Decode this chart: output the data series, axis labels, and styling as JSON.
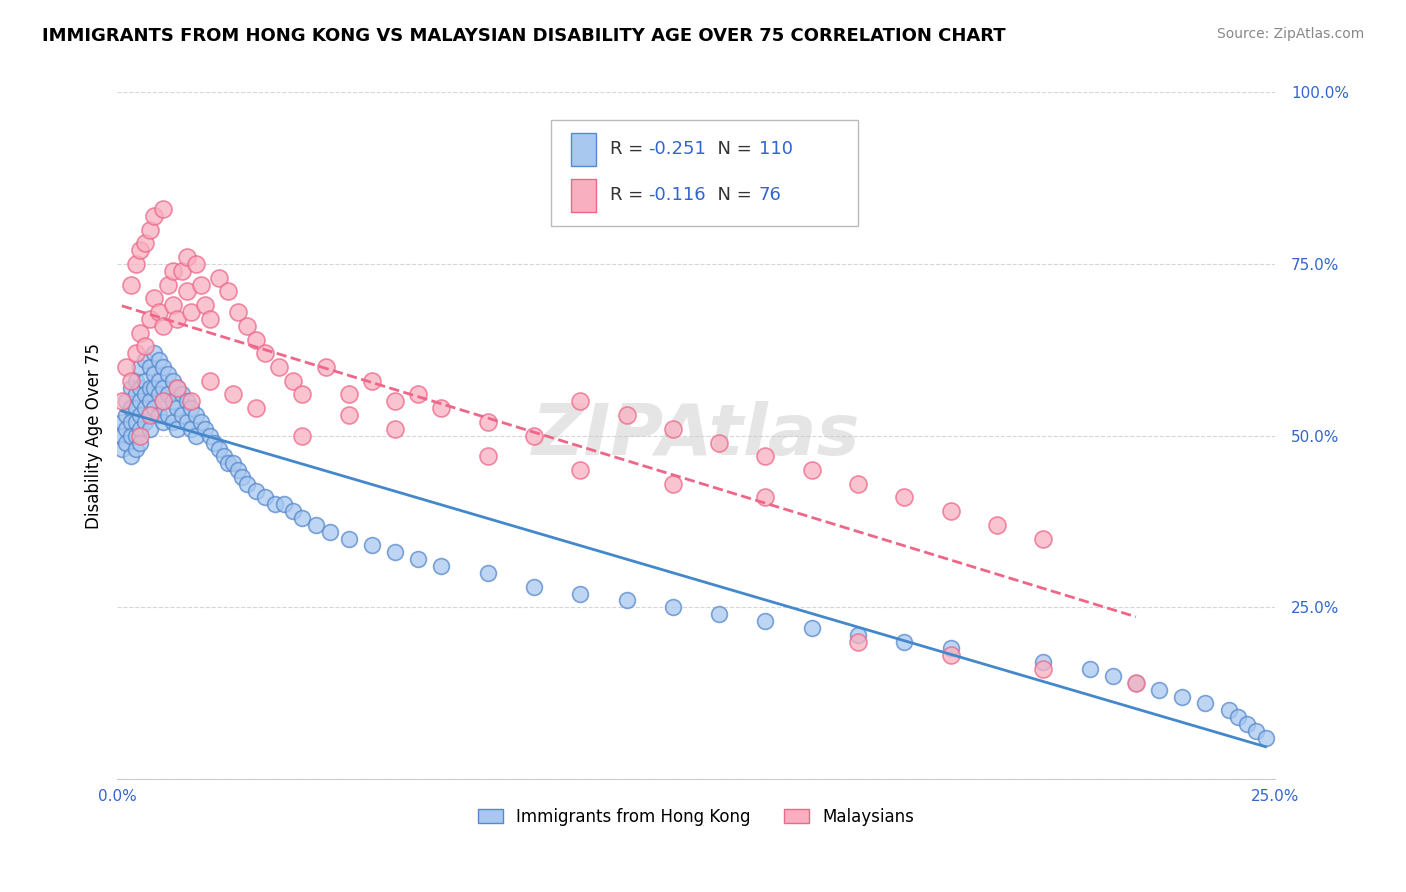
{
  "title": "IMMIGRANTS FROM HONG KONG VS MALAYSIAN DISABILITY AGE OVER 75 CORRELATION CHART",
  "source": "Source: ZipAtlas.com",
  "ylabel": "Disability Age Over 75",
  "x_min": 0.0,
  "x_max": 0.25,
  "y_min": 0.0,
  "y_max": 1.0,
  "x_ticks": [
    0.0,
    0.05,
    0.1,
    0.15,
    0.2,
    0.25
  ],
  "x_tick_labels": [
    "0.0%",
    "",
    "",
    "",
    "",
    "25.0%"
  ],
  "y_tick_labels_right": [
    "",
    "25.0%",
    "50.0%",
    "75.0%",
    "100.0%"
  ],
  "y_ticks_right": [
    0.0,
    0.25,
    0.5,
    0.75,
    1.0
  ],
  "legend_hk_R": "-0.251",
  "legend_hk_N": "110",
  "legend_my_R": "-0.116",
  "legend_my_N": "76",
  "hk_color": "#a8c8f0",
  "my_color": "#f8b0c0",
  "hk_edge_color": "#5588cc",
  "my_edge_color": "#ee6688",
  "hk_line_color": "#4488cc",
  "my_line_color": "#ee6688",
  "legend_label_hk": "Immigrants from Hong Kong",
  "legend_label_my": "Malaysians",
  "hk_scatter_x": [
    0.001,
    0.001,
    0.001,
    0.002,
    0.002,
    0.002,
    0.002,
    0.003,
    0.003,
    0.003,
    0.003,
    0.003,
    0.004,
    0.004,
    0.004,
    0.004,
    0.004,
    0.004,
    0.005,
    0.005,
    0.005,
    0.005,
    0.005,
    0.005,
    0.006,
    0.006,
    0.006,
    0.006,
    0.006,
    0.007,
    0.007,
    0.007,
    0.007,
    0.007,
    0.008,
    0.008,
    0.008,
    0.008,
    0.009,
    0.009,
    0.009,
    0.009,
    0.01,
    0.01,
    0.01,
    0.01,
    0.011,
    0.011,
    0.011,
    0.012,
    0.012,
    0.012,
    0.013,
    0.013,
    0.013,
    0.014,
    0.014,
    0.015,
    0.015,
    0.016,
    0.016,
    0.017,
    0.017,
    0.018,
    0.019,
    0.02,
    0.021,
    0.022,
    0.023,
    0.024,
    0.025,
    0.026,
    0.027,
    0.028,
    0.03,
    0.032,
    0.034,
    0.036,
    0.038,
    0.04,
    0.043,
    0.046,
    0.05,
    0.055,
    0.06,
    0.065,
    0.07,
    0.08,
    0.09,
    0.1,
    0.11,
    0.12,
    0.13,
    0.14,
    0.15,
    0.16,
    0.17,
    0.18,
    0.2,
    0.21,
    0.215,
    0.22,
    0.225,
    0.23,
    0.235,
    0.24,
    0.242,
    0.244,
    0.246,
    0.248
  ],
  "hk_scatter_y": [
    0.52,
    0.5,
    0.48,
    0.55,
    0.53,
    0.51,
    0.49,
    0.57,
    0.54,
    0.52,
    0.5,
    0.47,
    0.58,
    0.56,
    0.54,
    0.52,
    0.5,
    0.48,
    0.6,
    0.57,
    0.55,
    0.53,
    0.51,
    0.49,
    0.61,
    0.58,
    0.56,
    0.54,
    0.52,
    0.6,
    0.57,
    0.55,
    0.53,
    0.51,
    0.62,
    0.59,
    0.57,
    0.54,
    0.61,
    0.58,
    0.56,
    0.53,
    0.6,
    0.57,
    0.55,
    0.52,
    0.59,
    0.56,
    0.53,
    0.58,
    0.55,
    0.52,
    0.57,
    0.54,
    0.51,
    0.56,
    0.53,
    0.55,
    0.52,
    0.54,
    0.51,
    0.53,
    0.5,
    0.52,
    0.51,
    0.5,
    0.49,
    0.48,
    0.47,
    0.46,
    0.46,
    0.45,
    0.44,
    0.43,
    0.42,
    0.41,
    0.4,
    0.4,
    0.39,
    0.38,
    0.37,
    0.36,
    0.35,
    0.34,
    0.33,
    0.32,
    0.31,
    0.3,
    0.28,
    0.27,
    0.26,
    0.25,
    0.24,
    0.23,
    0.22,
    0.21,
    0.2,
    0.19,
    0.17,
    0.16,
    0.15,
    0.14,
    0.13,
    0.12,
    0.11,
    0.1,
    0.09,
    0.08,
    0.07,
    0.06
  ],
  "my_scatter_x": [
    0.001,
    0.002,
    0.003,
    0.003,
    0.004,
    0.004,
    0.005,
    0.005,
    0.006,
    0.006,
    0.007,
    0.007,
    0.008,
    0.008,
    0.009,
    0.01,
    0.01,
    0.011,
    0.012,
    0.012,
    0.013,
    0.014,
    0.015,
    0.015,
    0.016,
    0.017,
    0.018,
    0.019,
    0.02,
    0.022,
    0.024,
    0.026,
    0.028,
    0.03,
    0.032,
    0.035,
    0.038,
    0.04,
    0.045,
    0.05,
    0.055,
    0.06,
    0.065,
    0.07,
    0.08,
    0.09,
    0.1,
    0.11,
    0.12,
    0.13,
    0.14,
    0.15,
    0.16,
    0.17,
    0.18,
    0.19,
    0.2,
    0.005,
    0.007,
    0.01,
    0.013,
    0.016,
    0.02,
    0.025,
    0.03,
    0.04,
    0.05,
    0.06,
    0.08,
    0.1,
    0.12,
    0.14,
    0.16,
    0.18,
    0.2,
    0.22
  ],
  "my_scatter_y": [
    0.55,
    0.6,
    0.72,
    0.58,
    0.62,
    0.75,
    0.65,
    0.77,
    0.63,
    0.78,
    0.67,
    0.8,
    0.7,
    0.82,
    0.68,
    0.66,
    0.83,
    0.72,
    0.69,
    0.74,
    0.67,
    0.74,
    0.71,
    0.76,
    0.68,
    0.75,
    0.72,
    0.69,
    0.67,
    0.73,
    0.71,
    0.68,
    0.66,
    0.64,
    0.62,
    0.6,
    0.58,
    0.56,
    0.6,
    0.56,
    0.58,
    0.55,
    0.56,
    0.54,
    0.52,
    0.5,
    0.55,
    0.53,
    0.51,
    0.49,
    0.47,
    0.45,
    0.43,
    0.41,
    0.39,
    0.37,
    0.35,
    0.5,
    0.53,
    0.55,
    0.57,
    0.55,
    0.58,
    0.56,
    0.54,
    0.5,
    0.53,
    0.51,
    0.47,
    0.45,
    0.43,
    0.41,
    0.2,
    0.18,
    0.16,
    0.14
  ]
}
